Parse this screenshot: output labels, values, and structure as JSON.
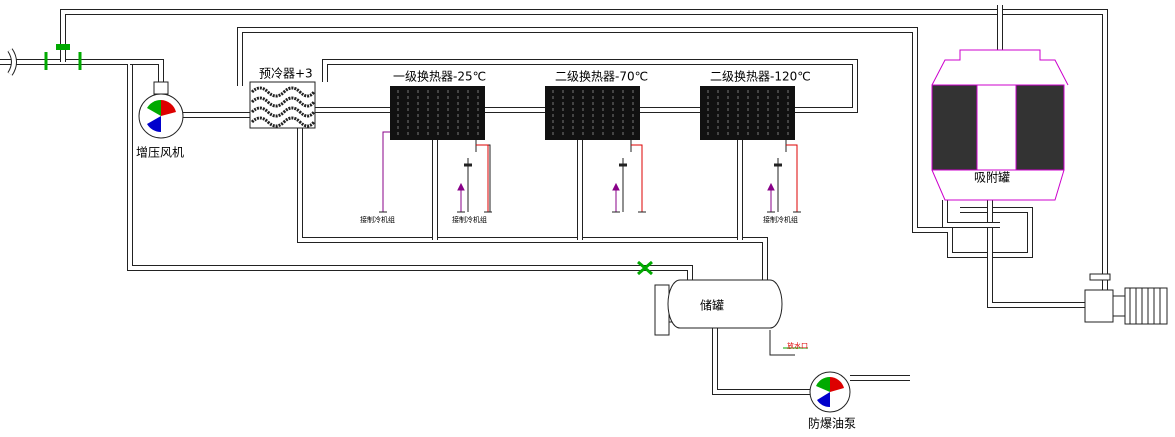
{
  "labels": {
    "precooler": "预冷器+3",
    "exchanger1": "一级换热器-25℃",
    "exchanger2": "二级换热器-70℃",
    "exchanger3": "二级换热器-120℃",
    "fan": "增压风机",
    "adsorber": "吸附罐",
    "tank": "储罐",
    "pump": "防爆油泵",
    "drain": "放水口"
  },
  "chillers": [
    "接制冷机组",
    "接制冷机组",
    "接制冷机组"
  ]
}
